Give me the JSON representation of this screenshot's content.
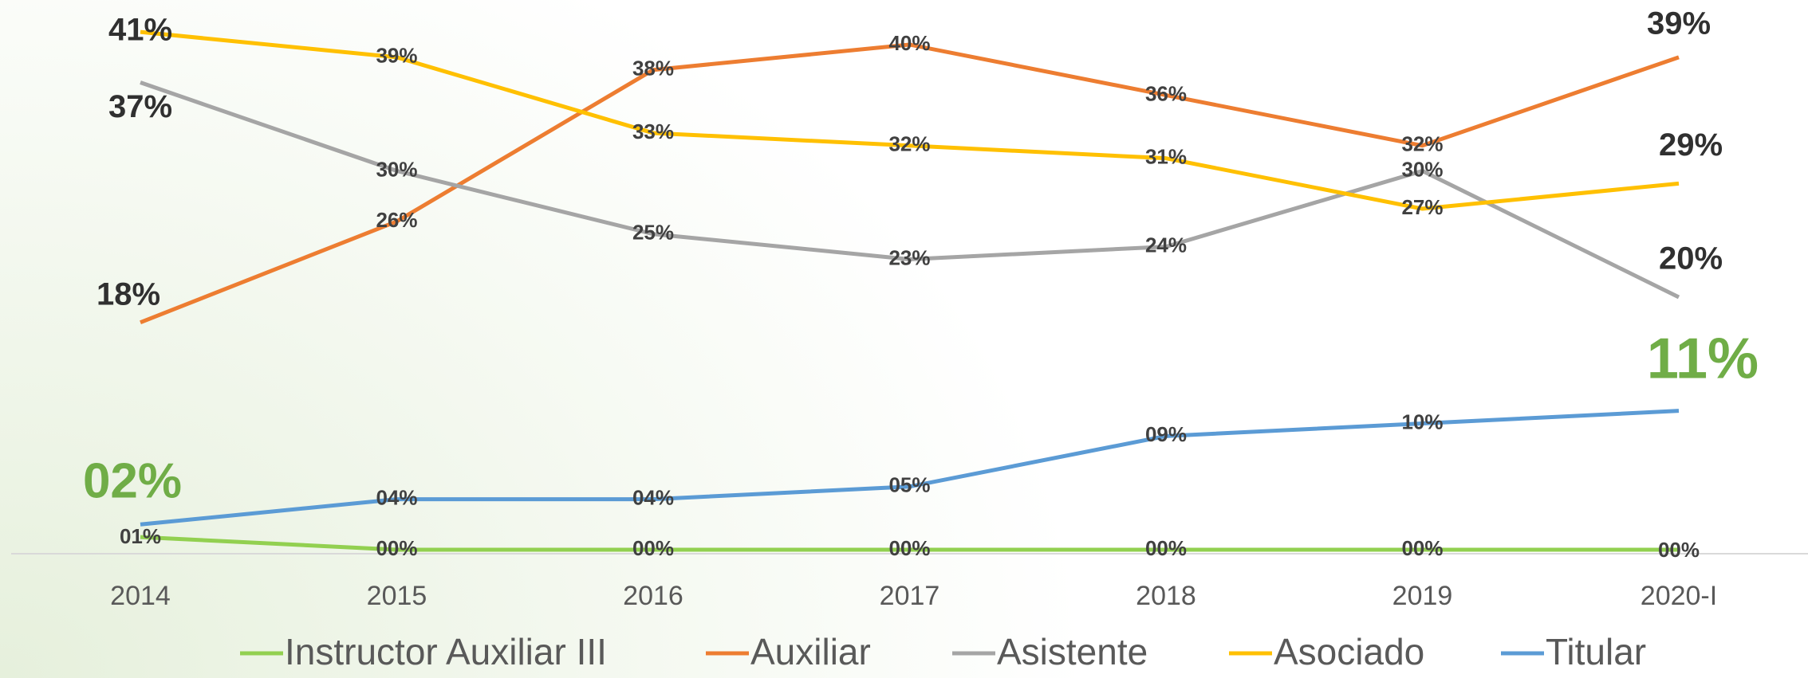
{
  "chart_data": {
    "type": "line",
    "categories": [
      "2014",
      "2015",
      "2016",
      "2017",
      "2018",
      "2019",
      "2020-I"
    ],
    "series": [
      {
        "name": "Instructor Auxiliar III",
        "color": "#92d050",
        "values": [
          1,
          0,
          0,
          0,
          0,
          0,
          0
        ],
        "value_labels": [
          "01%",
          "00%",
          "00%",
          "00%",
          "00%",
          "00%",
          "00%"
        ]
      },
      {
        "name": "Auxiliar",
        "color": "#ed7d31",
        "values": [
          18,
          26,
          38,
          40,
          36,
          32,
          39
        ],
        "value_labels": [
          "18%",
          "26%",
          "38%",
          "40%",
          "36%",
          "32%",
          "39%"
        ]
      },
      {
        "name": "Asistente",
        "color": "#a5a5a5",
        "values": [
          37,
          30,
          25,
          23,
          24,
          30,
          20
        ],
        "value_labels": [
          "37%",
          "30%",
          "25%",
          "23%",
          "24%",
          "30%",
          "20%"
        ]
      },
      {
        "name": "Asociado",
        "color": "#ffc000",
        "values": [
          41,
          39,
          33,
          32,
          31,
          27,
          29
        ],
        "value_labels": [
          "41%",
          "39%",
          "33%",
          "32%",
          "31%",
          "27%",
          "29%"
        ]
      },
      {
        "name": "Titular",
        "color": "#5b9bd5",
        "values": [
          2,
          4,
          4,
          5,
          9,
          10,
          11
        ],
        "value_labels": [
          "02%",
          "04%",
          "04%",
          "05%",
          "09%",
          "10%",
          "11%"
        ]
      }
    ],
    "legend": "bottom"
  }
}
